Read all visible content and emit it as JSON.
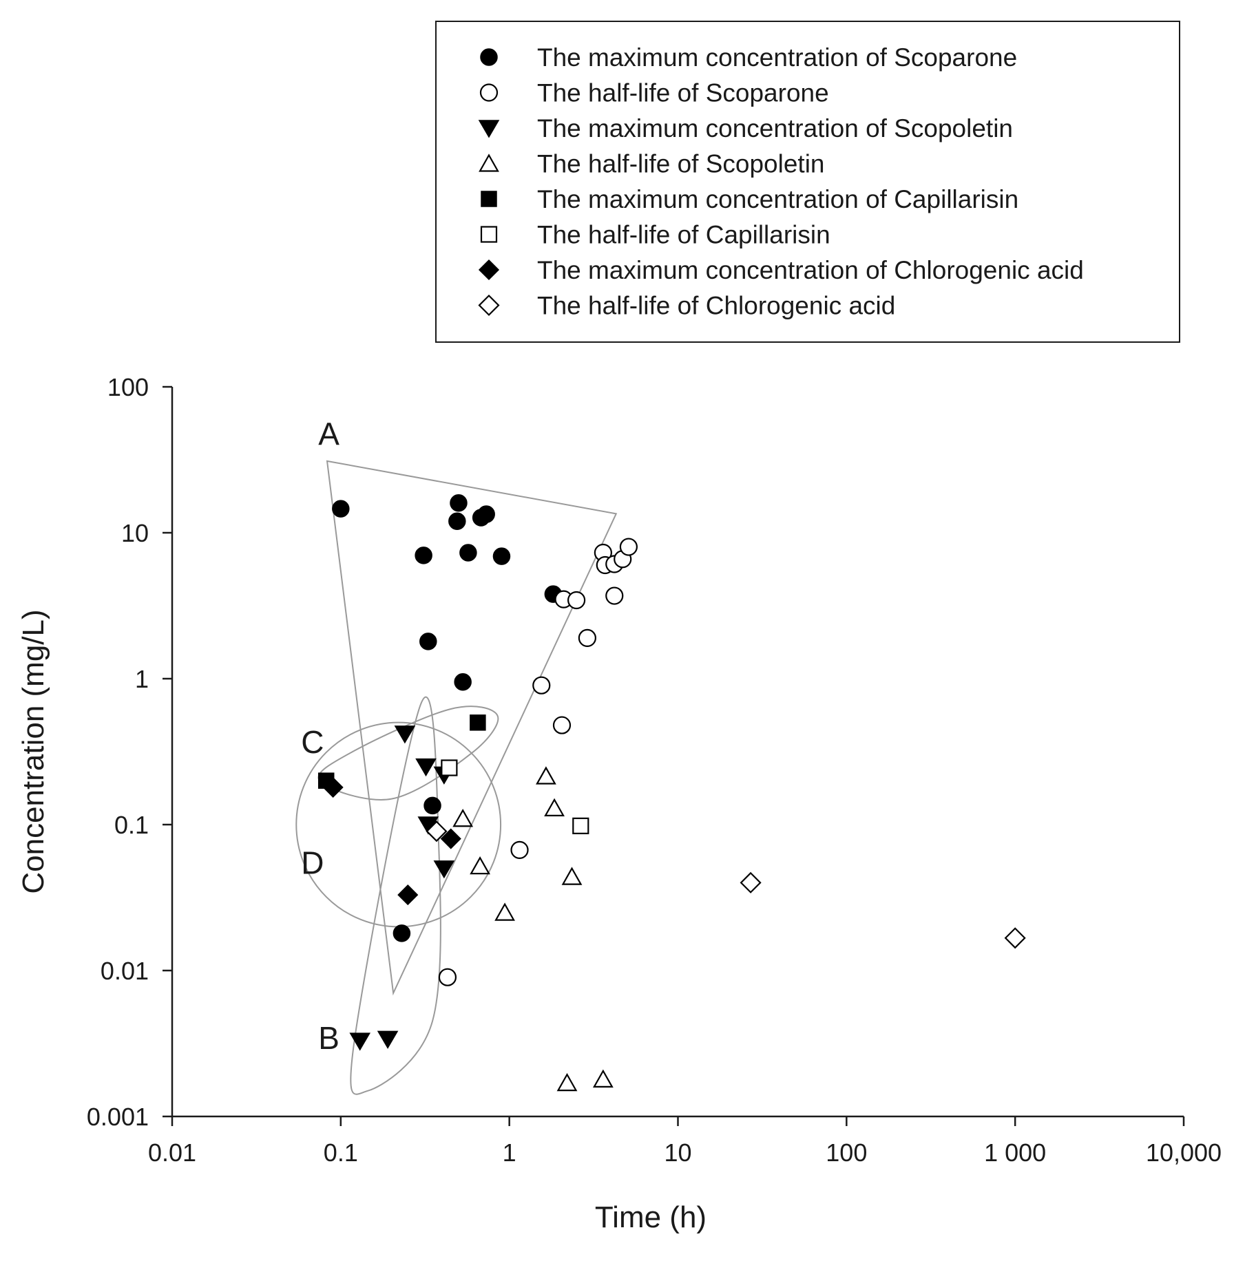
{
  "chart_data": {
    "type": "scatter",
    "title": "",
    "xlabel": "Time (h)",
    "ylabel": "Concentration (mg/L)",
    "xscale": "log",
    "yscale": "log",
    "xlim": [
      0.01,
      10000
    ],
    "ylim": [
      0.001,
      100
    ],
    "x_ticks": [
      {
        "value": 0.01,
        "label": "0.01"
      },
      {
        "value": 0.1,
        "label": "0.1"
      },
      {
        "value": 1,
        "label": "1"
      },
      {
        "value": 10,
        "label": "10"
      },
      {
        "value": 100,
        "label": "100"
      },
      {
        "value": 1000,
        "label": "1 000"
      },
      {
        "value": 10000,
        "label": "10,000"
      }
    ],
    "y_ticks": [
      {
        "value": 0.001,
        "label": "0.001"
      },
      {
        "value": 0.01,
        "label": "0.01"
      },
      {
        "value": 0.1,
        "label": "0.1"
      },
      {
        "value": 1,
        "label": "1"
      },
      {
        "value": 10,
        "label": "10"
      },
      {
        "value": 100,
        "label": "100"
      }
    ],
    "grid": false,
    "legend_position": "top-right",
    "series": [
      {
        "name": "The maximum concentration of Scoparone",
        "marker": "circle",
        "filled": true,
        "points": [
          [
            0.1,
            14.6
          ],
          [
            0.5,
            16
          ],
          [
            0.49,
            12
          ],
          [
            0.68,
            12.7
          ],
          [
            0.73,
            13.4
          ],
          [
            0.31,
            7
          ],
          [
            0.57,
            7.3
          ],
          [
            0.9,
            6.9
          ],
          [
            1.82,
            3.8
          ],
          [
            0.33,
            1.8
          ],
          [
            0.53,
            0.95
          ],
          [
            0.35,
            0.135
          ],
          [
            0.23,
            0.018
          ]
        ]
      },
      {
        "name": "The half-life of Scoparone",
        "marker": "circle",
        "filled": false,
        "points": [
          [
            3.6,
            7.3
          ],
          [
            3.7,
            6
          ],
          [
            4.2,
            6.1
          ],
          [
            4.7,
            6.6
          ],
          [
            5.1,
            8
          ],
          [
            2.1,
            3.5
          ],
          [
            2.5,
            3.45
          ],
          [
            4.2,
            3.7
          ],
          [
            2.9,
            1.9
          ],
          [
            1.55,
            0.9
          ],
          [
            2.05,
            0.48
          ],
          [
            1.15,
            0.067
          ],
          [
            0.43,
            0.009
          ]
        ]
      },
      {
        "name": "The maximum concentration of Scopoletin",
        "marker": "triangle-down",
        "filled": true,
        "points": [
          [
            0.24,
            0.42
          ],
          [
            0.32,
            0.25
          ],
          [
            0.41,
            0.22
          ],
          [
            0.33,
            0.1
          ],
          [
            0.41,
            0.05
          ],
          [
            0.13,
            0.0033
          ],
          [
            0.19,
            0.0034
          ]
        ]
      },
      {
        "name": "The half-life of Scopoletin",
        "marker": "triangle-up",
        "filled": false,
        "points": [
          [
            1.65,
            0.215
          ],
          [
            1.85,
            0.13
          ],
          [
            0.53,
            0.11
          ],
          [
            0.67,
            0.052
          ],
          [
            2.35,
            0.044
          ],
          [
            0.94,
            0.025
          ],
          [
            2.2,
            0.0017
          ],
          [
            3.6,
            0.0018
          ]
        ]
      },
      {
        "name": "The maximum concentration of Capillarisin",
        "marker": "square",
        "filled": true,
        "points": [
          [
            0.082,
            0.2
          ],
          [
            0.65,
            0.5
          ]
        ]
      },
      {
        "name": "The half-life of Capillarisin",
        "marker": "square",
        "filled": false,
        "points": [
          [
            0.44,
            0.245
          ],
          [
            2.65,
            0.098
          ]
        ]
      },
      {
        "name": "The maximum concentration of Chlorogenic acid",
        "marker": "diamond",
        "filled": true,
        "points": [
          [
            0.09,
            0.18
          ],
          [
            0.45,
            0.08
          ],
          [
            0.25,
            0.033
          ]
        ]
      },
      {
        "name": "The half-life of Chlorogenic acid",
        "marker": "diamond",
        "filled": false,
        "points": [
          [
            0.37,
            0.09
          ],
          [
            27,
            0.04
          ],
          [
            1000,
            0.0167
          ]
        ]
      }
    ],
    "regions": [
      {
        "label": "A",
        "shape": "triangle",
        "label_at": [
          0.085,
          40
        ],
        "vertices": [
          [
            0.083,
            31
          ],
          [
            4.3,
            13.5
          ],
          [
            0.205,
            0.007
          ]
        ]
      },
      {
        "label": "B",
        "shape": "ellipse",
        "label_at": [
          0.085,
          0.0029
        ],
        "outline": [
          [
            0.3,
            0.68
          ],
          [
            0.12,
            0.0032
          ],
          [
            0.145,
            0.0015
          ],
          [
            0.35,
            0.0045
          ],
          [
            0.38,
            0.08
          ]
        ]
      },
      {
        "label": "C",
        "shape": "ellipse",
        "label_at": [
          0.068,
          0.31
        ],
        "outline": [
          [
            0.075,
            0.2
          ],
          [
            0.12,
            0.32
          ],
          [
            0.45,
            0.62
          ],
          [
            0.85,
            0.56
          ],
          [
            0.6,
            0.31
          ],
          [
            0.2,
            0.15
          ]
        ]
      },
      {
        "label": "D",
        "shape": "circle",
        "label_at": [
          0.068,
          0.046
        ],
        "center": [
          0.22,
          0.1
        ],
        "radius_decades": 0.7
      }
    ]
  }
}
